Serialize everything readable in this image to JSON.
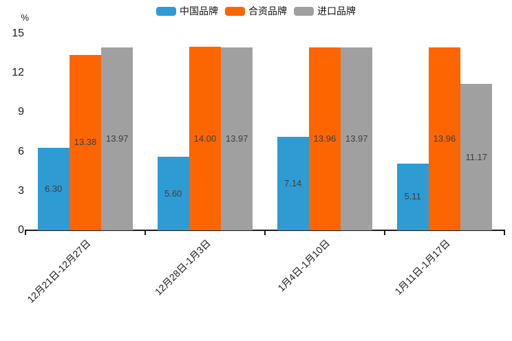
{
  "chart_data": {
    "type": "bar",
    "title": "",
    "unit_label": "%",
    "categories": [
      "12月21日-12月27日",
      "12月28日-1月3日",
      "1月4日-1月10日",
      "1月11日-1月17日"
    ],
    "series": [
      {
        "name": "中国品牌",
        "color": "#2E9BD3",
        "values": [
          6.3,
          5.6,
          7.14,
          5.11
        ]
      },
      {
        "name": "合资品牌",
        "color": "#FD6500",
        "values": [
          13.38,
          14.0,
          13.96,
          13.96
        ]
      },
      {
        "name": "进口品牌",
        "color": "#A0A0A0",
        "values": [
          13.97,
          13.97,
          13.97,
          11.17
        ]
      }
    ],
    "ylim": [
      0,
      15
    ],
    "yticks": [
      0,
      3,
      6,
      9,
      12,
      15
    ],
    "grid": false,
    "legend_position": "top",
    "value_label_decimals": 2,
    "colors": {
      "axis": "#1a1a1a",
      "value_label": "#3f3f3f",
      "background": "#ffffff"
    }
  }
}
